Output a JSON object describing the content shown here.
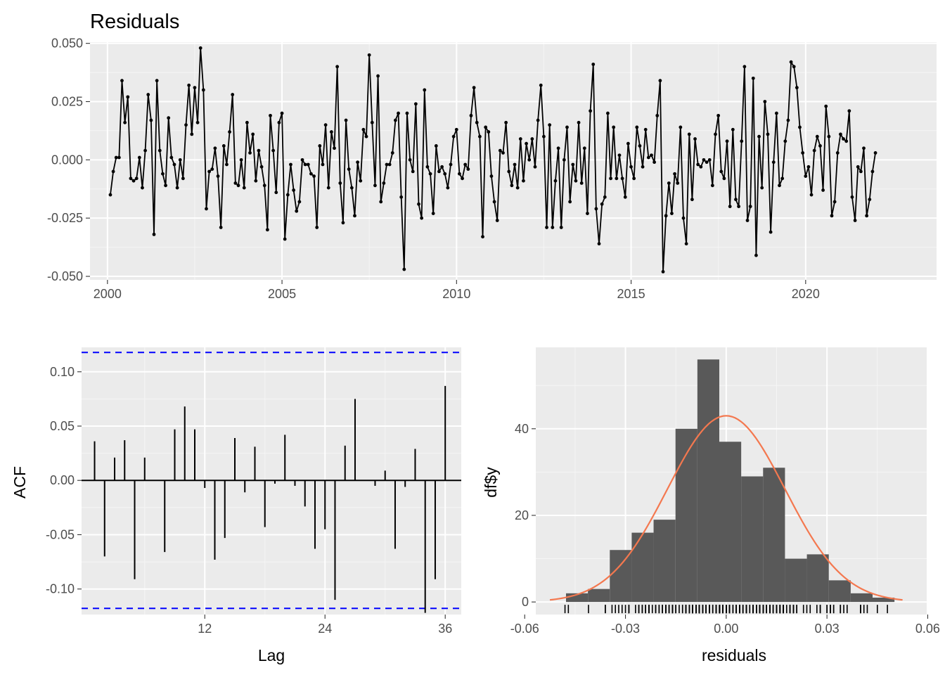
{
  "colors": {
    "panel": "#ebebeb",
    "grid_major": "#ffffff",
    "grid_minor": "#f5f5f5",
    "ink": "#000000",
    "tick_text": "#4d4d4d",
    "ci_line": "#0000ff",
    "histogram_bar": "#595959",
    "density_curve": "#f4784f"
  },
  "chart_data": [
    {
      "type": "line",
      "title": "Residuals",
      "xlabel": "",
      "ylabel": "",
      "xlim": [
        1999.5,
        2023.75
      ],
      "ylim": [
        -0.0515,
        0.0505
      ],
      "x_ticks": [
        2000,
        2005,
        2010,
        2015,
        2020
      ],
      "x_tick_labels": [
        "2000",
        "2005",
        "2010",
        "2015",
        "2020"
      ],
      "y_ticks": [
        -0.05,
        -0.025,
        0.0,
        0.025,
        0.05
      ],
      "y_tick_labels": [
        "-0.050",
        "-0.025",
        "0.000",
        "0.025",
        "0.050"
      ],
      "x_start": 2000.083,
      "x_step": 0.08333,
      "frequency": "monthly",
      "grid": true,
      "points": true,
      "values": [
        -0.015,
        -0.005,
        0.001,
        0.001,
        0.034,
        0.016,
        0.027,
        -0.008,
        -0.009,
        -0.008,
        0.001,
        -0.012,
        0.004,
        0.028,
        0.017,
        -0.032,
        0.034,
        0.004,
        -0.006,
        -0.011,
        0.018,
        0.001,
        -0.002,
        -0.012,
        0.0,
        -0.008,
        0.015,
        0.032,
        0.011,
        0.031,
        0.016,
        0.048,
        0.03,
        -0.021,
        -0.005,
        -0.004,
        0.005,
        -0.007,
        -0.029,
        0.006,
        -0.002,
        0.012,
        0.028,
        -0.01,
        -0.011,
        0.0,
        -0.012,
        0.016,
        0.003,
        0.011,
        -0.009,
        0.004,
        -0.003,
        -0.011,
        -0.03,
        0.019,
        0.004,
        -0.014,
        0.016,
        0.02,
        -0.034,
        -0.015,
        -0.002,
        -0.013,
        -0.022,
        -0.018,
        0.0,
        -0.002,
        -0.002,
        -0.006,
        -0.007,
        -0.029,
        0.006,
        -0.002,
        0.015,
        -0.012,
        0.012,
        0.005,
        0.04,
        -0.01,
        -0.027,
        0.017,
        -0.004,
        -0.012,
        -0.024,
        -0.001,
        -0.009,
        0.013,
        0.01,
        0.045,
        0.016,
        -0.011,
        0.036,
        -0.018,
        -0.01,
        -0.002,
        -0.002,
        0.003,
        0.017,
        0.02,
        -0.016,
        -0.047,
        0.02,
        0.0,
        -0.005,
        0.024,
        -0.019,
        -0.025,
        0.03,
        -0.003,
        -0.006,
        -0.023,
        0.006,
        -0.005,
        -0.003,
        -0.006,
        -0.012,
        -0.002,
        0.01,
        0.013,
        -0.006,
        -0.008,
        -0.002,
        -0.004,
        0.019,
        0.031,
        0.016,
        0.01,
        -0.033,
        0.014,
        0.012,
        -0.007,
        -0.018,
        -0.026,
        0.004,
        0.003,
        0.016,
        -0.005,
        -0.011,
        -0.002,
        -0.012,
        0.009,
        -0.009,
        0.007,
        0.0,
        0.009,
        -0.003,
        0.017,
        0.032,
        0.01,
        -0.029,
        0.015,
        -0.029,
        -0.009,
        0.005,
        -0.029,
        0.0,
        0.014,
        -0.018,
        -0.002,
        -0.009,
        0.016,
        -0.01,
        0.005,
        -0.023,
        0.021,
        0.041,
        -0.021,
        -0.036,
        -0.019,
        -0.016,
        0.02,
        -0.008,
        0.014,
        -0.008,
        0.002,
        -0.008,
        -0.016,
        0.007,
        -0.003,
        -0.008,
        0.014,
        0.006,
        -0.003,
        0.013,
        0.001,
        0.002,
        -0.001,
        0.019,
        0.034,
        -0.048,
        -0.024,
        -0.01,
        -0.023,
        -0.006,
        -0.01,
        0.014,
        -0.025,
        -0.036,
        0.011,
        -0.017,
        0.009,
        -0.002,
        -0.003,
        0.0,
        -0.001,
        0.0,
        -0.011,
        0.011,
        0.019,
        -0.005,
        -0.008,
        0.008,
        -0.02,
        0.013,
        -0.017,
        -0.02,
        0.008,
        0.04,
        -0.026,
        -0.02,
        0.035,
        -0.041,
        0.01,
        -0.012,
        0.025,
        0.011,
        -0.031,
        -0.001,
        0.02,
        -0.011,
        -0.008,
        0.008,
        0.017,
        0.042,
        0.04,
        0.031,
        0.014,
        0.003,
        -0.007,
        -0.003,
        -0.015,
        0.004,
        0.01,
        0.006,
        -0.013,
        0.023,
        0.01,
        -0.024,
        -0.018,
        0.003,
        0.011,
        0.009,
        0.008,
        0.021,
        -0.016,
        -0.026,
        -0.003,
        -0.005,
        0.005,
        -0.024,
        -0.017,
        -0.005,
        0.003
      ]
    },
    {
      "type": "bar",
      "title": "",
      "xlabel": "Lag",
      "ylabel": "ACF",
      "xlim": [
        -0.3,
        37.6
      ],
      "ylim": [
        -0.1235,
        0.1225
      ],
      "x_ticks": [
        12,
        24,
        36
      ],
      "x_tick_labels": [
        "12",
        "24",
        "36"
      ],
      "y_ticks": [
        -0.1,
        -0.05,
        0.0,
        0.05,
        0.1
      ],
      "y_tick_labels": [
        "-0.10",
        "-0.05",
        "0.00",
        "0.05",
        "0.10"
      ],
      "grid": true,
      "lags": [
        1,
        2,
        3,
        4,
        5,
        6,
        7,
        8,
        9,
        10,
        11,
        12,
        13,
        14,
        15,
        16,
        17,
        18,
        19,
        20,
        21,
        22,
        23,
        24,
        25,
        26,
        27,
        28,
        29,
        30,
        31,
        32,
        33,
        34,
        35,
        36
      ],
      "values": [
        0.036,
        -0.07,
        0.021,
        0.037,
        -0.091,
        0.021,
        0.0,
        -0.066,
        0.047,
        0.068,
        0.047,
        -0.007,
        -0.073,
        -0.053,
        0.039,
        -0.011,
        0.031,
        -0.043,
        -0.003,
        0.042,
        -0.005,
        -0.024,
        -0.063,
        -0.045,
        -0.11,
        0.032,
        0.075,
        0.0,
        -0.005,
        0.009,
        -0.063,
        -0.006,
        0.029,
        -0.122,
        -0.091,
        0.087
      ],
      "confidence_bound": 0.1178
    },
    {
      "type": "bar",
      "title": "",
      "xlabel": "residuals",
      "ylabel": "df$y",
      "xlim": [
        -0.0567,
        0.0597
      ],
      "ylim": [
        -2.9,
        58.8
      ],
      "x_ticks": [
        -0.06,
        -0.03,
        0.0,
        0.03,
        0.06
      ],
      "x_tick_labels": [
        "-0.06",
        "-0.03",
        "0.00",
        "0.03",
        "0.06"
      ],
      "y_ticks": [
        0,
        20,
        40
      ],
      "y_tick_labels": [
        "0",
        "20",
        "40"
      ],
      "grid": true,
      "bin_start": -0.0477,
      "bin_width": 0.00652,
      "counts": [
        2,
        3,
        12,
        16,
        19,
        40,
        56,
        37,
        29,
        31,
        10,
        11,
        5,
        2,
        1
      ],
      "density_curve": {
        "mean": 0.0,
        "sd": 0.0175,
        "scale": 43,
        "x_range": [
          -0.0525,
          0.0525
        ]
      }
    }
  ]
}
